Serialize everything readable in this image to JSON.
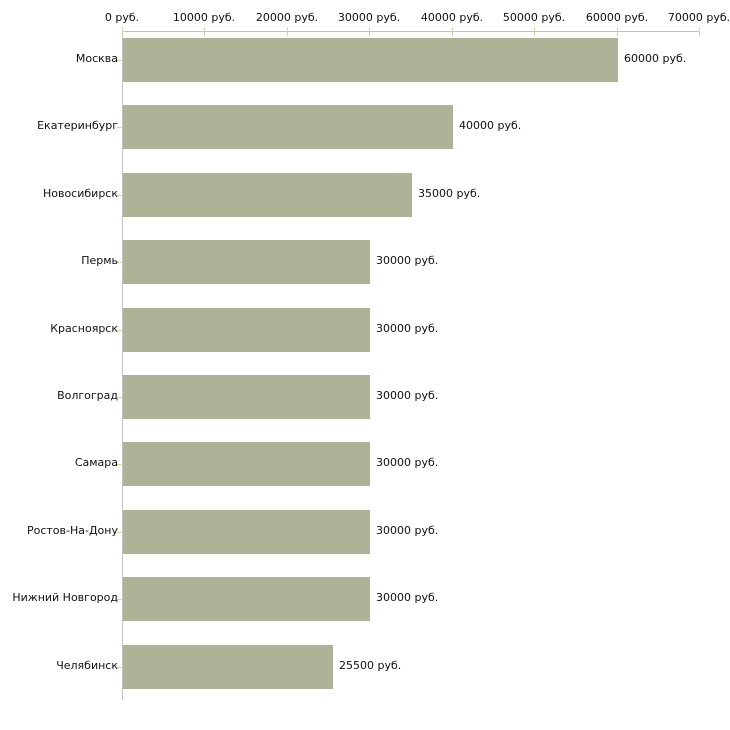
{
  "chart_data": {
    "type": "bar",
    "orientation": "horizontal",
    "title": "",
    "xlabel": "",
    "ylabel": "",
    "unit": "руб.",
    "categories": [
      "Москва",
      "Екатеринбург",
      "Новосибирск",
      "Пермь",
      "Красноярск",
      "Волгоград",
      "Самара",
      "Ростов-На-Дону",
      "Нижний Новгород",
      "Челябинск"
    ],
    "values": [
      60000,
      40000,
      35000,
      30000,
      30000,
      30000,
      30000,
      30000,
      30000,
      25500
    ],
    "bar_labels": [
      "60000 руб.",
      "40000 руб.",
      "35000 руб.",
      "30000 руб.",
      "30000 руб.",
      "30000 руб.",
      "30000 руб.",
      "30000 руб.",
      "30000 руб.",
      "25500 руб."
    ],
    "xlim": [
      0,
      70000
    ],
    "x_ticks": [
      0,
      10000,
      20000,
      30000,
      40000,
      50000,
      60000,
      70000
    ],
    "x_tick_labels": [
      "0 руб.",
      "10000 руб.",
      "20000 руб.",
      "30000 руб.",
      "40000 руб.",
      "50000 руб.",
      "60000 руб.",
      "70000 руб."
    ],
    "grid": false,
    "legend": false,
    "colors": {
      "bar_fill": "#adb396",
      "axis_line": "#c3c3c3",
      "tick_mark": "#d8d5ab",
      "text": "#111111",
      "background": "#ffffff"
    }
  }
}
